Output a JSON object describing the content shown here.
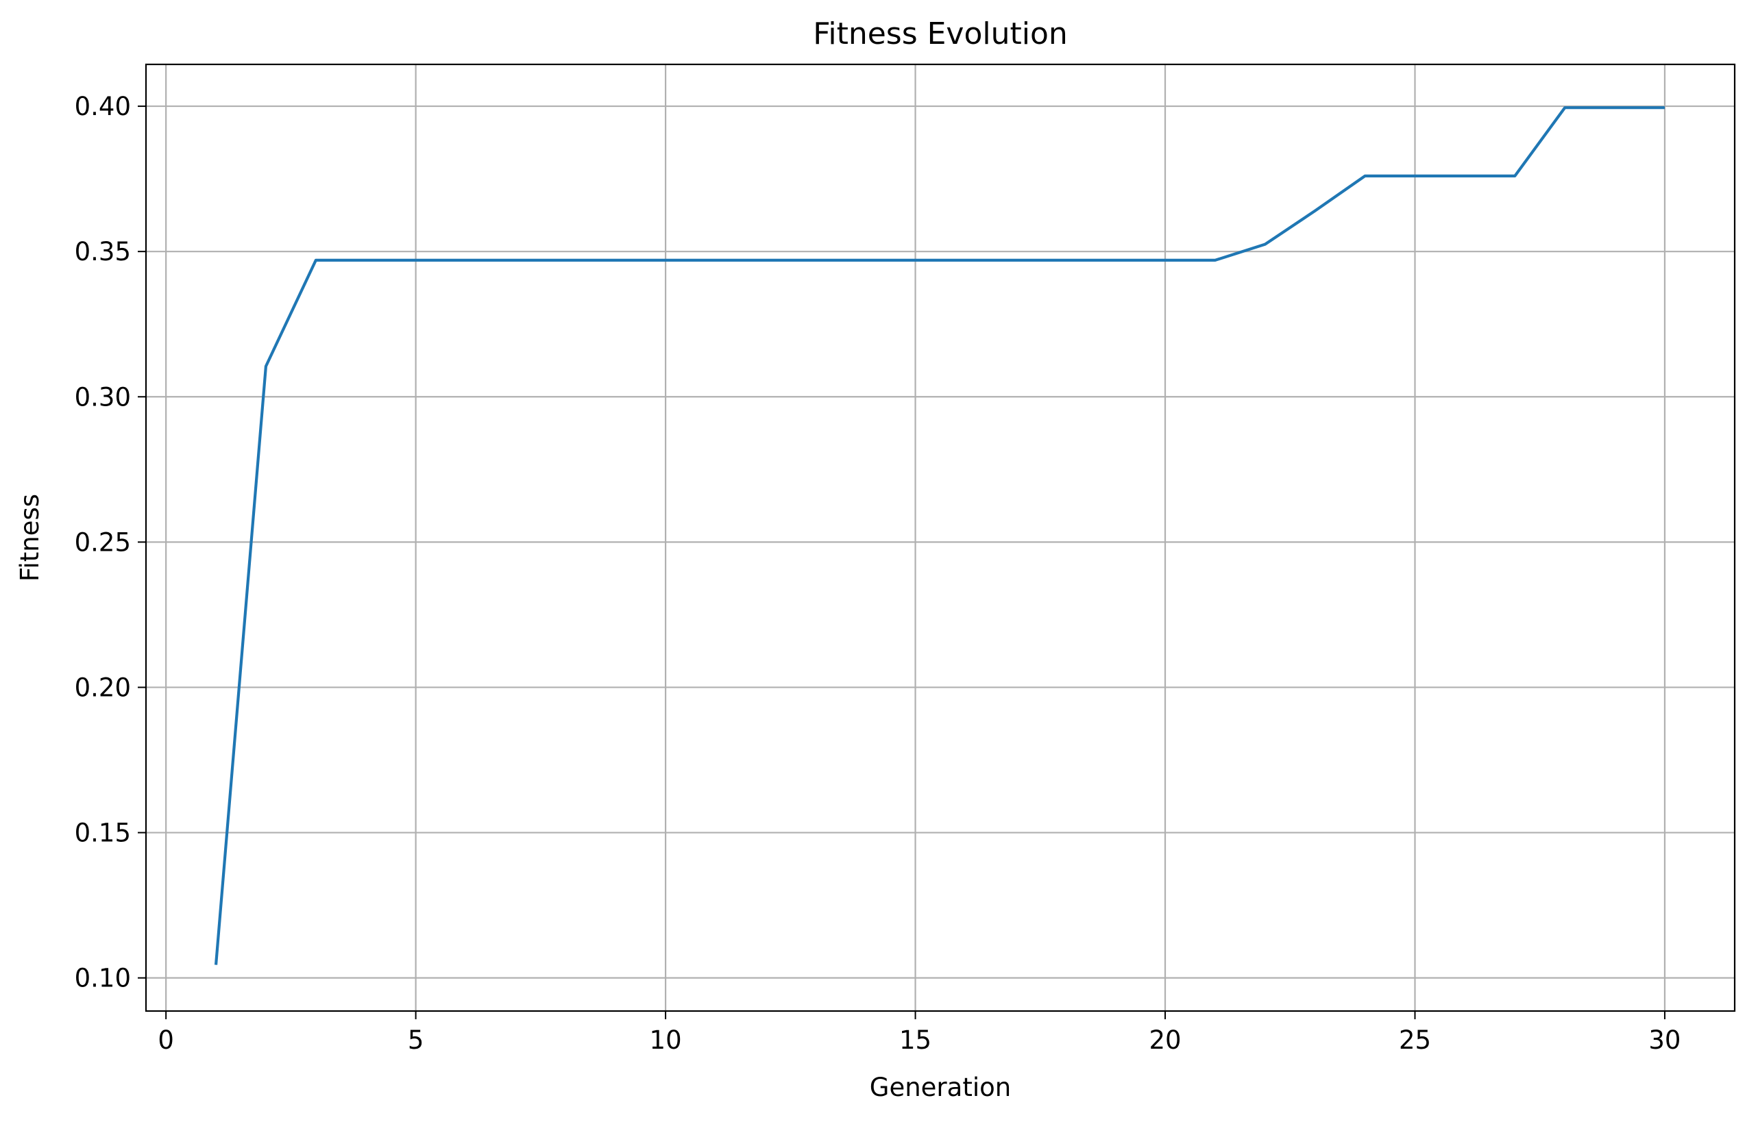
{
  "chart_data": {
    "type": "line",
    "title": "Fitness Evolution",
    "xlabel": "Generation",
    "ylabel": "Fitness",
    "xlim": [
      -0.4,
      31.4
    ],
    "ylim": [
      0.0886,
      0.4144
    ],
    "xticks": [
      0,
      5,
      10,
      15,
      20,
      25,
      30
    ],
    "xtick_labels": [
      "0",
      "5",
      "10",
      "15",
      "20",
      "25",
      "30"
    ],
    "yticks": [
      0.1,
      0.15,
      0.2,
      0.25,
      0.3,
      0.35,
      0.4
    ],
    "ytick_labels": [
      "0.10",
      "0.15",
      "0.20",
      "0.25",
      "0.30",
      "0.35",
      "0.40"
    ],
    "grid": true,
    "series": [
      {
        "color": "#1f77b4",
        "x": [
          1,
          2,
          3,
          4,
          5,
          6,
          7,
          8,
          9,
          10,
          11,
          12,
          13,
          14,
          15,
          16,
          17,
          18,
          19,
          20,
          21,
          22,
          23,
          24,
          25,
          26,
          27,
          28,
          29,
          30
        ],
        "y": [
          0.1045,
          0.3105,
          0.347,
          0.347,
          0.347,
          0.347,
          0.347,
          0.347,
          0.347,
          0.347,
          0.347,
          0.347,
          0.347,
          0.347,
          0.347,
          0.347,
          0.347,
          0.347,
          0.347,
          0.347,
          0.347,
          0.3525,
          0.364,
          0.376,
          0.376,
          0.376,
          0.376,
          0.3995,
          0.3995,
          0.3995
        ]
      }
    ]
  }
}
